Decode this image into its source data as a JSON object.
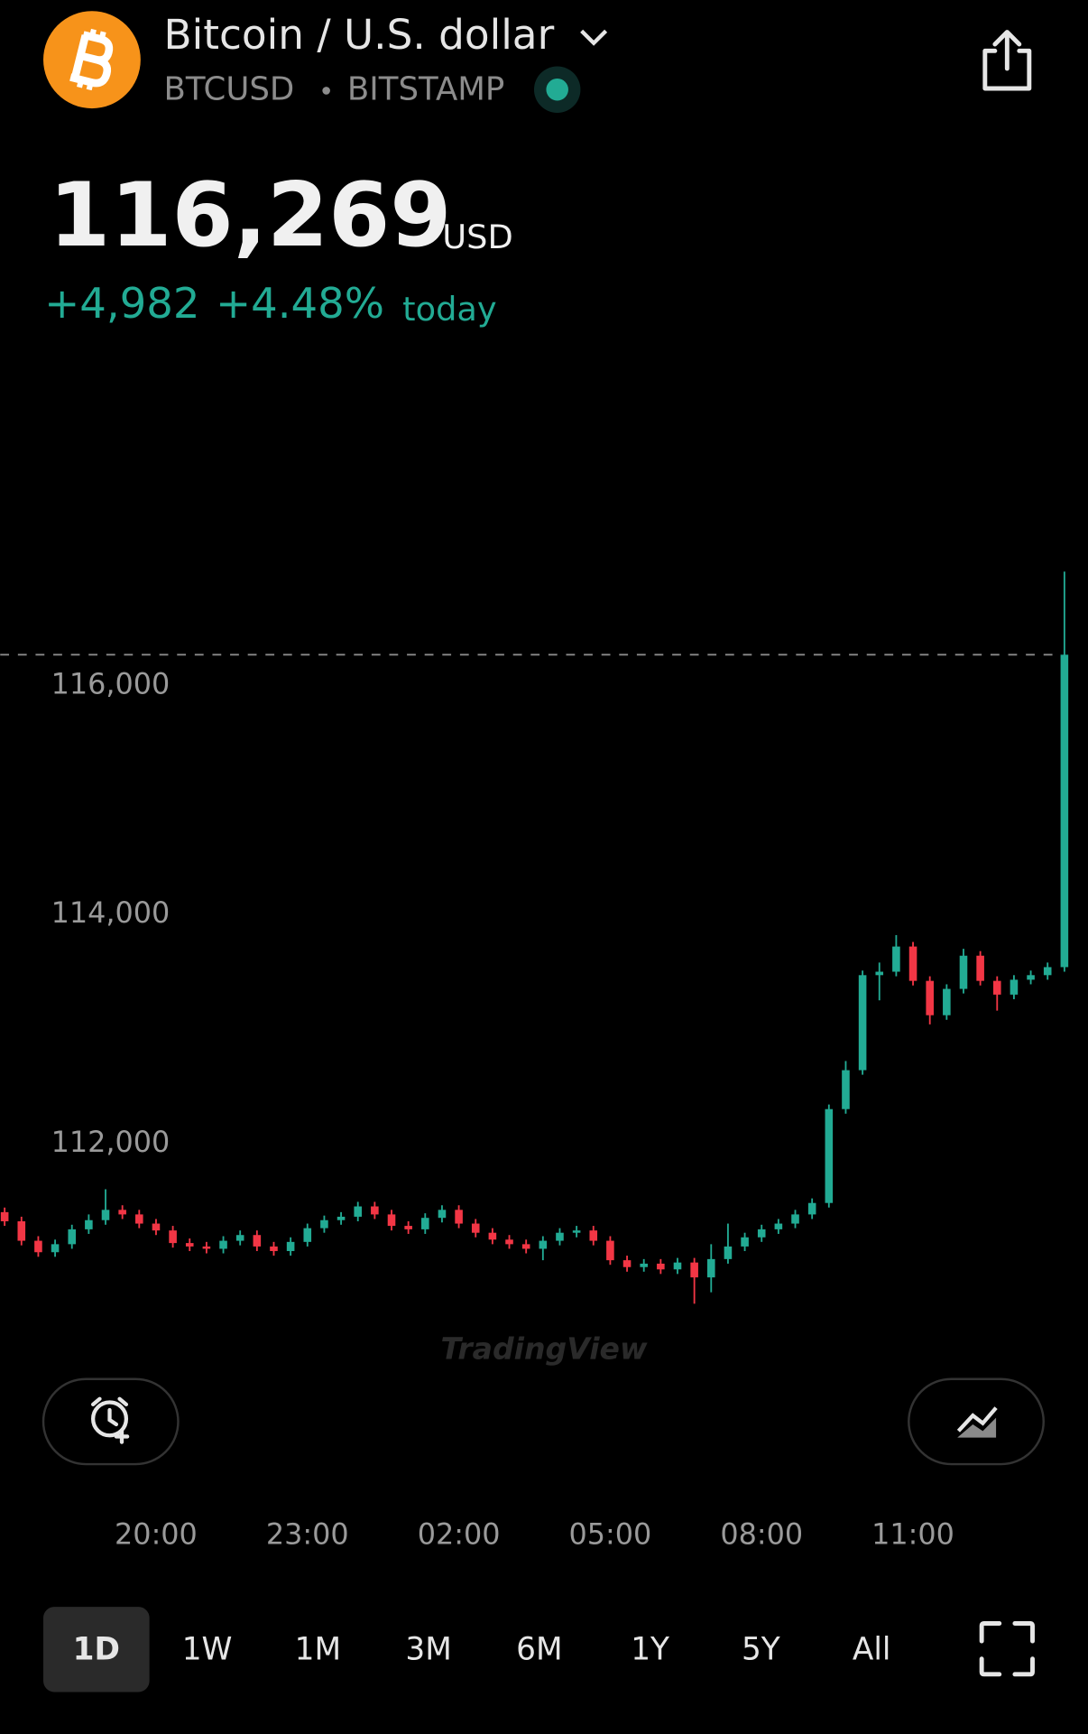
{
  "header": {
    "title": "Bitcoin / U.S. dollar",
    "symbol": "BTCUSD",
    "exchange": "BITSTAMP",
    "price": "116,269",
    "currency": "USD",
    "change": "+4,982",
    "change_percent": "+4.48%",
    "period": "today"
  },
  "watermark": "TradingView",
  "ranges": [
    "1D",
    "1W",
    "1M",
    "3M",
    "6M",
    "1Y",
    "5Y",
    "All"
  ],
  "selected_range": "1D",
  "chart_data": {
    "type": "candlestick",
    "up_color": "#22ab94",
    "down_color": "#f23645",
    "grid": false,
    "ylim": [
      110010,
      118800
    ],
    "yticks": [
      {
        "value": 112000,
        "label": "112,000"
      },
      {
        "value": 114000,
        "label": "114,000"
      },
      {
        "value": 116000,
        "label": "116,000"
      }
    ],
    "xticks": [
      {
        "value": 9,
        "label": "20:00"
      },
      {
        "value": 18,
        "label": "23:00"
      },
      {
        "value": 27,
        "label": "02:00"
      },
      {
        "value": 36,
        "label": "05:00"
      },
      {
        "value": 45,
        "label": "08:00"
      },
      {
        "value": 54,
        "label": "11:00"
      }
    ],
    "open": [
      111400,
      111320,
      111150,
      111050,
      111120,
      111250,
      111330,
      111420,
      111380,
      111300,
      111240,
      111130,
      111100,
      111080,
      111150,
      111200,
      111100,
      111060,
      111140,
      111260,
      111330,
      111360,
      111450,
      111380,
      111280,
      111250,
      111350,
      111420,
      111300,
      111220,
      111160,
      111120,
      111080,
      111150,
      111220,
      111240,
      111150,
      110980,
      110920,
      110950,
      110900,
      110960,
      110830,
      110990,
      111100,
      111180,
      111250,
      111300,
      111380,
      111480,
      112300,
      112640,
      113470,
      113500,
      113720,
      113420,
      113120,
      113350,
      113640,
      113420,
      113300,
      113430,
      113470,
      113540
    ],
    "high": [
      111440,
      111360,
      111190,
      111160,
      111290,
      111380,
      111600,
      111460,
      111420,
      111340,
      111280,
      111170,
      111140,
      111190,
      111240,
      111240,
      111140,
      111180,
      111300,
      111370,
      111400,
      111490,
      111490,
      111420,
      111320,
      111390,
      111460,
      111460,
      111340,
      111260,
      111200,
      111160,
      111190,
      111260,
      111280,
      111280,
      111190,
      111020,
      110990,
      110990,
      111000,
      111000,
      111120,
      111300,
      111220,
      111290,
      111340,
      111420,
      111520,
      112340,
      112720,
      113510,
      113580,
      113820,
      113760,
      113460,
      113390,
      113700,
      113680,
      113460,
      113470,
      113510,
      113580,
      116995
    ],
    "low": [
      111280,
      111110,
      111010,
      111010,
      111080,
      111210,
      111290,
      111340,
      111260,
      111200,
      111090,
      111060,
      111040,
      111040,
      111110,
      111060,
      111020,
      111020,
      111100,
      111220,
      111290,
      111320,
      111340,
      111240,
      111210,
      111210,
      111310,
      111260,
      111180,
      111120,
      111080,
      111040,
      110980,
      111110,
      111180,
      111110,
      110940,
      110880,
      110880,
      110860,
      110860,
      110600,
      110700,
      110950,
      111060,
      111140,
      111210,
      111260,
      111340,
      111440,
      112260,
      112600,
      113250,
      113460,
      113380,
      113040,
      113080,
      113310,
      113380,
      113160,
      113260,
      113390,
      113430,
      113500
    ],
    "close": [
      111320,
      111150,
      111050,
      111120,
      111250,
      111330,
      111420,
      111380,
      111300,
      111240,
      111130,
      111100,
      111080,
      111150,
      111200,
      111100,
      111060,
      111140,
      111260,
      111330,
      111360,
      111450,
      111380,
      111280,
      111250,
      111350,
      111420,
      111300,
      111220,
      111160,
      111120,
      111080,
      111150,
      111220,
      111240,
      111150,
      110980,
      110920,
      110950,
      110900,
      110960,
      110830,
      110990,
      111100,
      111180,
      111250,
      111300,
      111380,
      111480,
      112300,
      112640,
      113470,
      113500,
      113720,
      113420,
      113120,
      113350,
      113640,
      113420,
      113300,
      113430,
      113470,
      113540,
      116269
    ]
  }
}
